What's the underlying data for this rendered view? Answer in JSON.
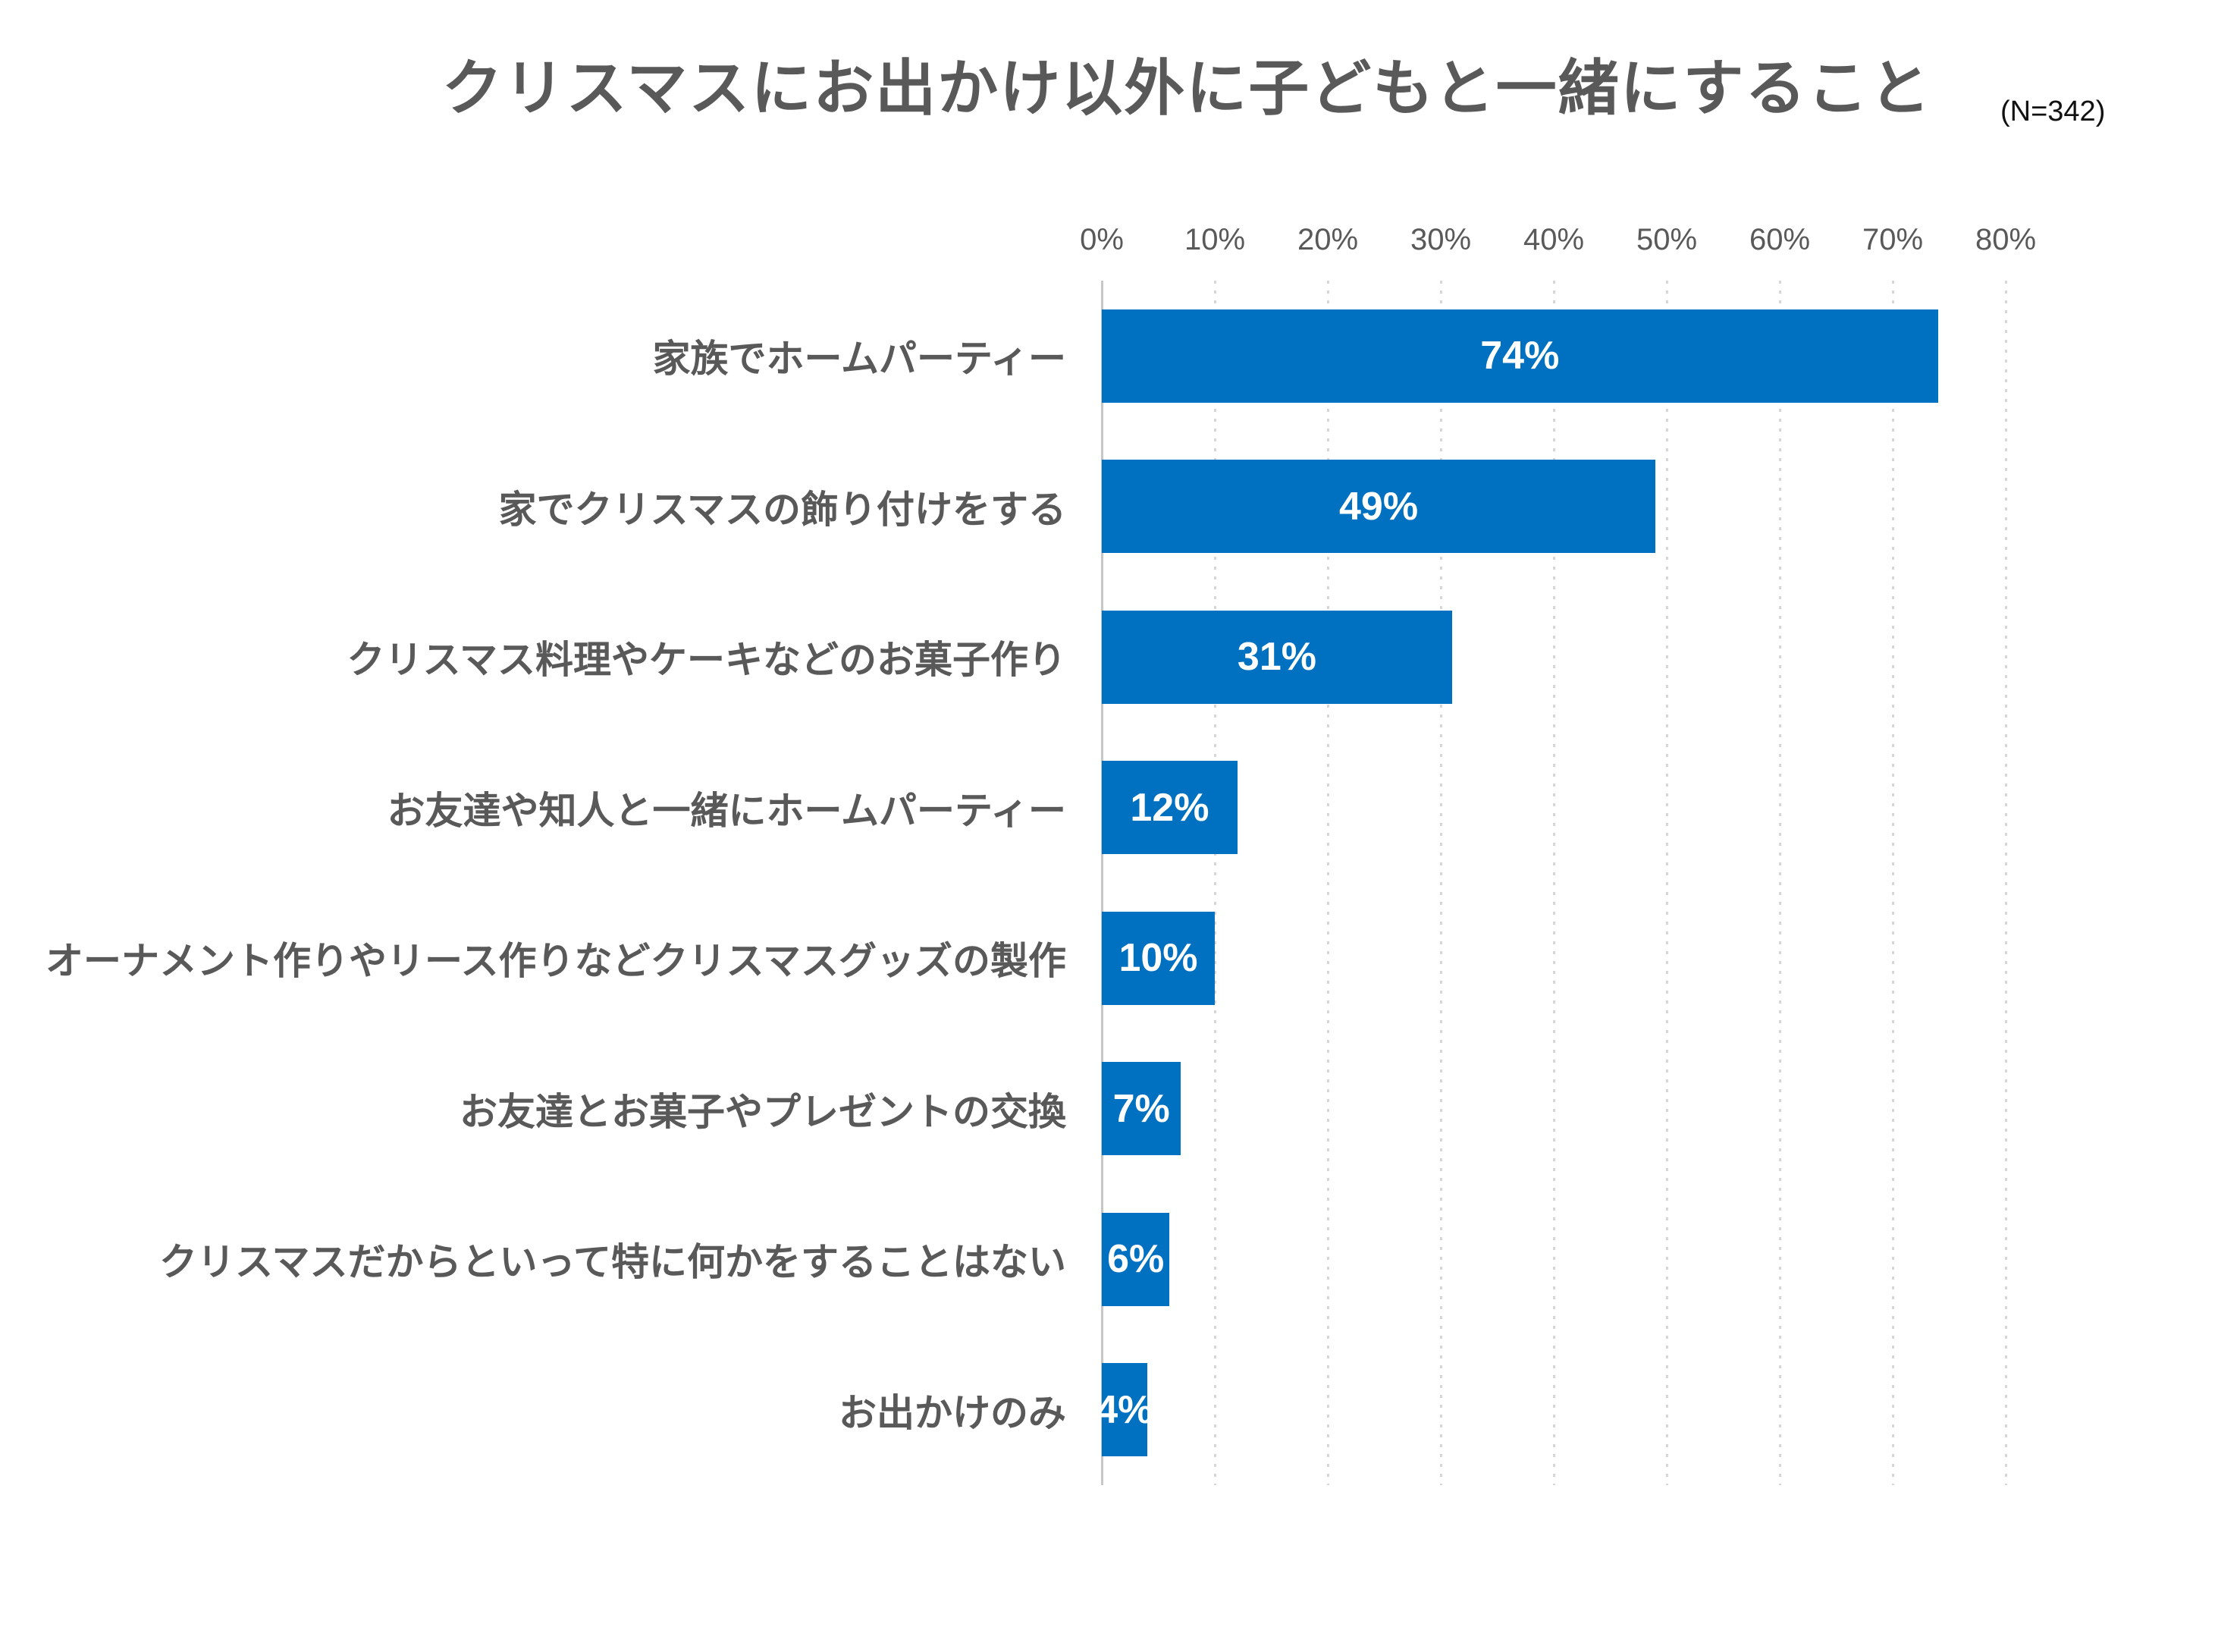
{
  "header": {
    "note": "survey chart header"
  },
  "colors": {
    "bar": "#0070C0",
    "title_text": "#595959",
    "category_text": "#595959",
    "tick_text": "#595959",
    "sample_size_text": "#111111",
    "value_text": "#FFFFFF",
    "gridline": "#D6D6D6",
    "axis_line": "#C6C6C6",
    "background": "#FFFFFF"
  },
  "chart_data": {
    "type": "bar",
    "orientation": "horizontal",
    "title": "クリスマスにお出かけ以外に子どもと一緒にすること",
    "sample_size_note": "(N=342)",
    "categories": [
      "家族でホームパーティー",
      "家でクリスマスの飾り付けをする",
      "クリスマス料理やケーキなどのお菓子作り",
      "お友達や知人と一緒にホームパーティー",
      "オーナメント作りやリース作りなどクリスマスグッズの製作",
      "お友達とお菓子やプレゼントの交換",
      "クリスマスだからといって特に何かをすることはない",
      "お出かけのみ"
    ],
    "values": [
      74,
      49,
      31,
      12,
      10,
      7,
      6,
      4
    ],
    "value_labels": [
      "74%",
      "49%",
      "31%",
      "12%",
      "10%",
      "7%",
      "6%",
      "4%"
    ],
    "xlabel": "",
    "ylabel": "",
    "xlim": [
      0,
      80
    ],
    "x_ticks": {
      "labels": [
        "0%",
        "10%",
        "20%",
        "30%",
        "40%",
        "50%",
        "60%",
        "70%",
        "80%"
      ],
      "values": [
        0,
        10,
        20,
        30,
        40,
        50,
        60,
        70,
        80
      ]
    },
    "grid": "vertical dotted gridlines, solid zero axis",
    "legend": "none",
    "value_label_position": "center of bar"
  }
}
